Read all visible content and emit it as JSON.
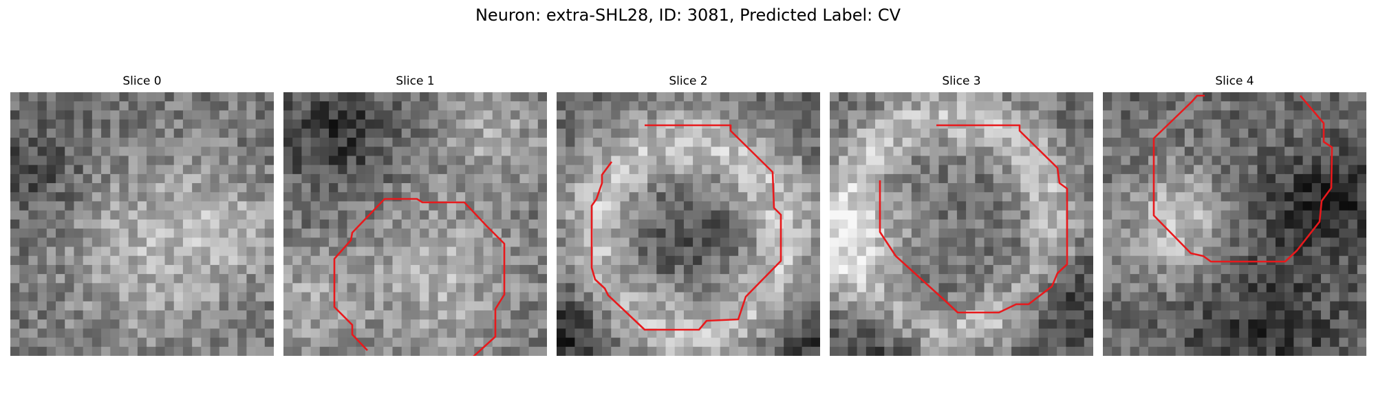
{
  "figure": {
    "title": "Neuron: extra-SHL28, ID: 3081, Predicted Label: CV"
  },
  "panels": [
    {
      "title": "Slice 0",
      "has_contour": false
    },
    {
      "title": "Slice 1",
      "has_contour": true
    },
    {
      "title": "Slice 2",
      "has_contour": true
    },
    {
      "title": "Slice 3",
      "has_contour": true
    },
    {
      "title": "Slice 4",
      "has_contour": true
    }
  ],
  "style": {
    "contour_color": "#e8191c",
    "colormap": "grayscale"
  }
}
